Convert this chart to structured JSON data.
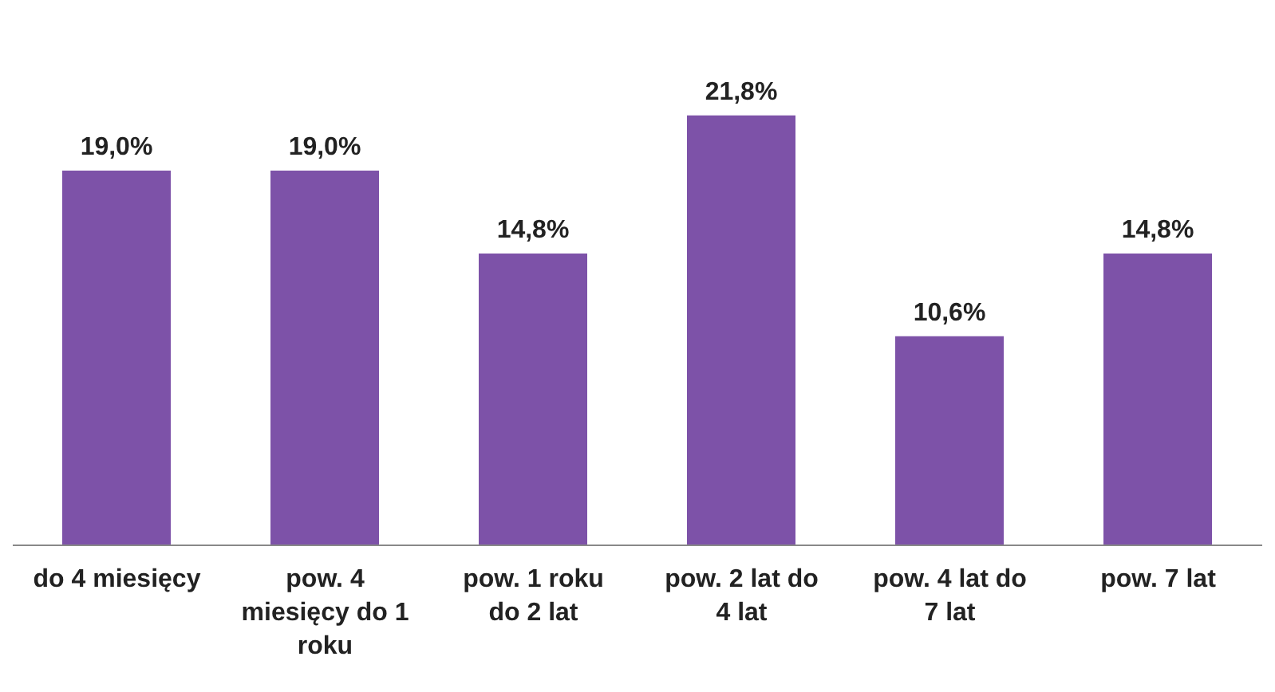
{
  "chart_data": {
    "type": "bar",
    "categories": [
      "do 4 miesięcy",
      "pow. 4 miesięcy do 1 roku",
      "pow. 1 roku do 2 lat",
      "pow. 2 lat do 4 lat",
      "pow. 4 lat do 7 lat",
      "pow. 7 lat"
    ],
    "values": [
      19.0,
      19.0,
      14.8,
      21.8,
      10.6,
      14.8
    ],
    "value_labels": [
      "19,0%",
      "19,0%",
      "14,8%",
      "21,8%",
      "10,6%",
      "14,8%"
    ],
    "color": "#7d52a8",
    "grid": false,
    "legend": false
  }
}
